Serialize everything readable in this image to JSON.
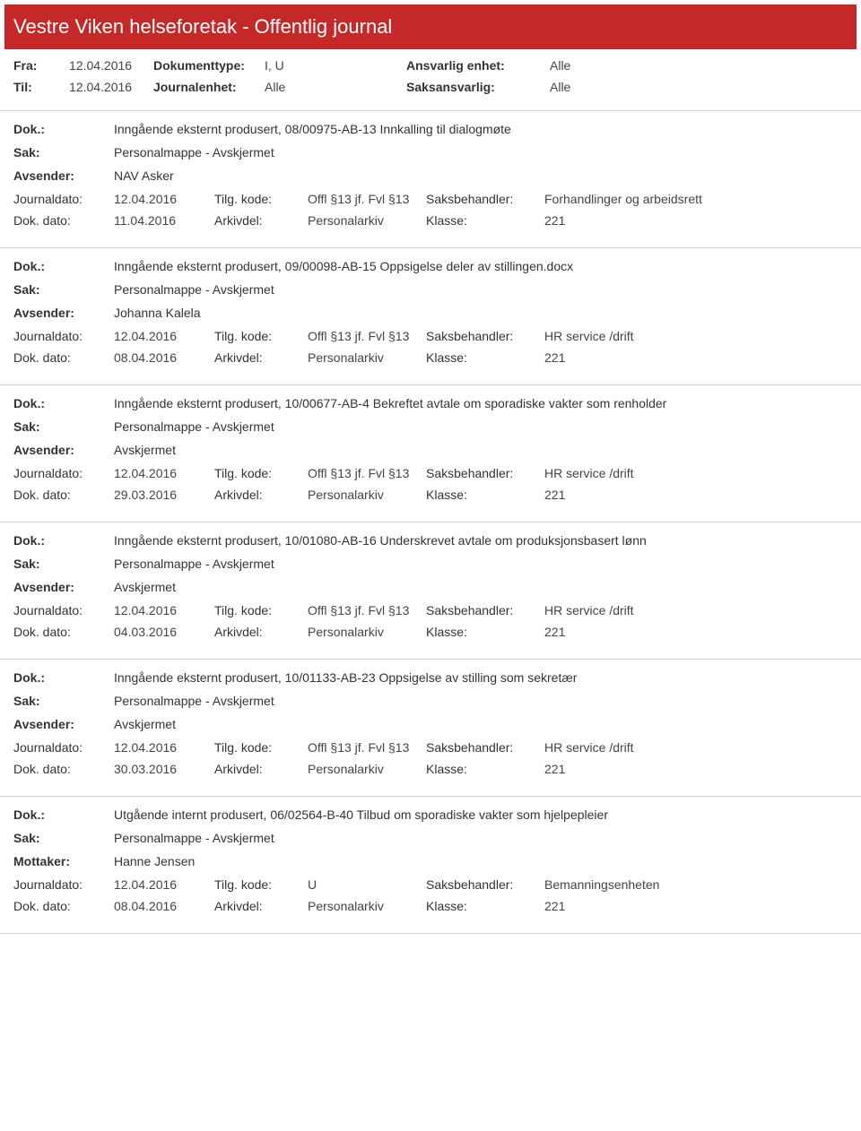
{
  "header": {
    "title": "Vestre Viken helseforetak - Offentlig journal"
  },
  "filters": {
    "fra_label": "Fra:",
    "fra_value": "12.04.2016",
    "til_label": "Til:",
    "til_value": "12.04.2016",
    "doktype_label": "Dokumenttype:",
    "doktype_value": "I, U",
    "journalenhet_label": "Journalenhet:",
    "journalenhet_value": "Alle",
    "ansvarlig_label": "Ansvarlig enhet:",
    "ansvarlig_value": "Alle",
    "saksansvarlig_label": "Saksansvarlig:",
    "saksansvarlig_value": "Alle"
  },
  "labels": {
    "dok": "Dok.:",
    "sak": "Sak:",
    "avsender": "Avsender:",
    "mottaker": "Mottaker:",
    "journaldato": "Journaldato:",
    "dokdato": "Dok. dato:",
    "tilgkode": "Tilg. kode:",
    "arkivdel": "Arkivdel:",
    "saksbehandler": "Saksbehandler:",
    "klasse": "Klasse:"
  },
  "entries": [
    {
      "dok": "Inngående eksternt produsert, 08/00975-AB-13 Innkalling til dialogmøte",
      "sak": "Personalmappe - Avskjermet",
      "party_label": "Avsender:",
      "party_value": "NAV Asker",
      "journaldato": "12.04.2016",
      "tilgkode": "Offl §13 jf. Fvl §13",
      "saksbehandler": "Forhandlinger og arbeidsrett",
      "dokdato": "11.04.2016",
      "arkivdel": "Personalarkiv",
      "klasse": "221"
    },
    {
      "dok": "Inngående eksternt produsert, 09/00098-AB-15 Oppsigelse deler av stillingen.docx",
      "sak": "Personalmappe - Avskjermet",
      "party_label": "Avsender:",
      "party_value": "Johanna Kalela",
      "journaldato": "12.04.2016",
      "tilgkode": "Offl §13 jf. Fvl §13",
      "saksbehandler": "HR service /drift",
      "dokdato": "08.04.2016",
      "arkivdel": "Personalarkiv",
      "klasse": "221"
    },
    {
      "dok": "Inngående eksternt produsert, 10/00677-AB-4 Bekreftet avtale om sporadiske vakter som renholder",
      "sak": "Personalmappe - Avskjermet",
      "party_label": "Avsender:",
      "party_value": "Avskjermet",
      "journaldato": "12.04.2016",
      "tilgkode": "Offl §13 jf. Fvl §13",
      "saksbehandler": "HR service /drift",
      "dokdato": "29.03.2016",
      "arkivdel": "Personalarkiv",
      "klasse": "221"
    },
    {
      "dok": "Inngående eksternt produsert, 10/01080-AB-16 Underskrevet avtale om produksjonsbasert lønn",
      "sak": "Personalmappe - Avskjermet",
      "party_label": "Avsender:",
      "party_value": "Avskjermet",
      "journaldato": "12.04.2016",
      "tilgkode": "Offl §13 jf. Fvl §13",
      "saksbehandler": "HR service /drift",
      "dokdato": "04.03.2016",
      "arkivdel": "Personalarkiv",
      "klasse": "221"
    },
    {
      "dok": "Inngående eksternt produsert, 10/01133-AB-23 Oppsigelse av stilling som sekretær",
      "sak": "Personalmappe - Avskjermet",
      "party_label": "Avsender:",
      "party_value": "Avskjermet",
      "journaldato": "12.04.2016",
      "tilgkode": "Offl §13 jf. Fvl §13",
      "saksbehandler": "HR service /drift",
      "dokdato": "30.03.2016",
      "arkivdel": "Personalarkiv",
      "klasse": "221"
    },
    {
      "dok": "Utgående internt produsert, 06/02564-B-40 Tilbud om sporadiske vakter som hjelpepleier",
      "sak": "Personalmappe - Avskjermet",
      "party_label": "Mottaker:",
      "party_value": "Hanne Jensen",
      "journaldato": "12.04.2016",
      "tilgkode": "U",
      "saksbehandler": "Bemanningsenheten",
      "dokdato": "08.04.2016",
      "arkivdel": "Personalarkiv",
      "klasse": "221"
    }
  ],
  "colors": {
    "header_bg": "#c52828",
    "text": "#333333",
    "rule": "#d0d0d0"
  }
}
